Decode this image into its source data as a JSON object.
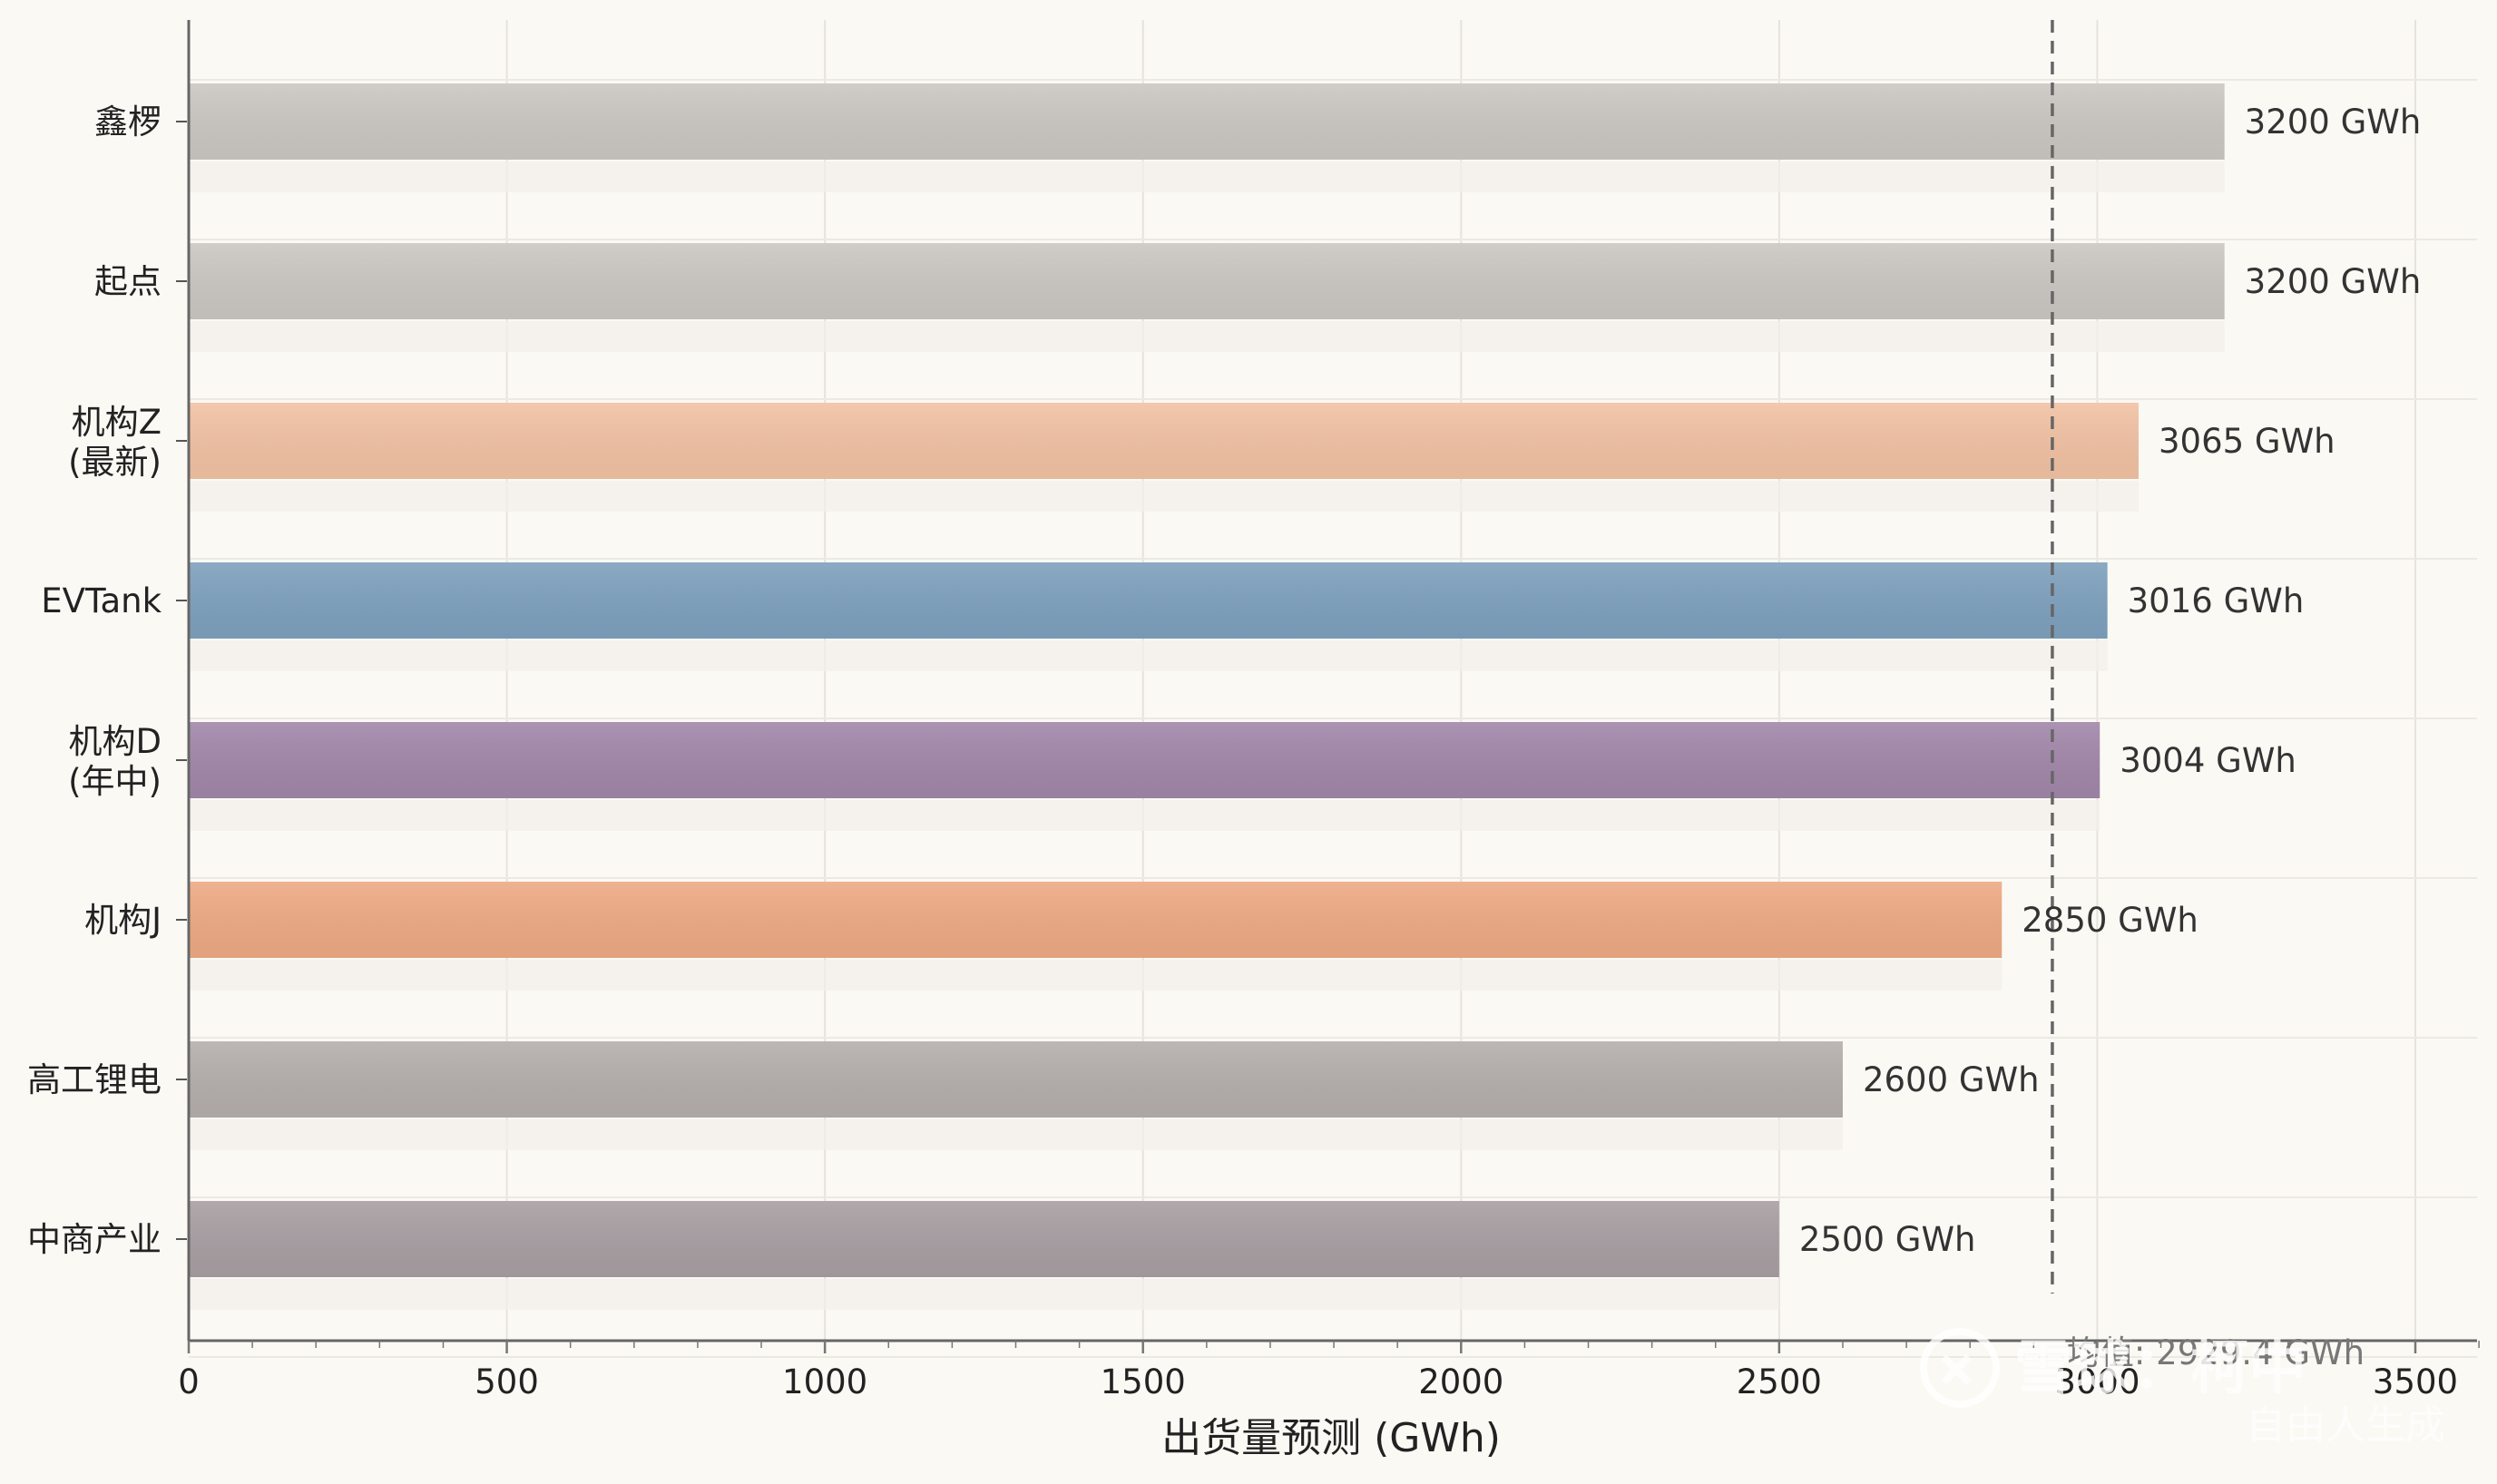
{
  "chart_data": {
    "type": "bar",
    "orientation": "horizontal",
    "categories": [
      "鑫椤",
      "起点",
      "机构Z\n(最新)",
      "EVTank",
      "机构D\n(年中)",
      "机构J",
      "高工锂电",
      "中商产业"
    ],
    "values": [
      3200,
      3200,
      3065,
      3016,
      3004,
      2850,
      2600,
      2500
    ],
    "value_labels": [
      "3200 GWh",
      "3200 GWh",
      "3065 GWh",
      "3016 GWh",
      "3004 GWh",
      "2850 GWh",
      "2600 GWh",
      "2500 GWh"
    ],
    "bar_colors": [
      "#cbc7c2",
      "#cbc7c2",
      "#f2c2a4",
      "#7ea1be",
      "#a287aa",
      "#eeaa84",
      "#b5afac",
      "#a89fa3"
    ],
    "xlabel": "出货量预测 (GWh)",
    "ylabel": "",
    "title": "",
    "xlim": [
      0,
      3600
    ],
    "xticks": [
      0,
      500,
      1000,
      1500,
      2000,
      2500,
      3000,
      3500
    ],
    "grid": true,
    "mean_line": {
      "value": 2929.4,
      "label": "均值: 2929.4 GWh",
      "style": "dashed",
      "color": "#666666"
    }
  },
  "watermark": {
    "brand": "雪球",
    "suffix": "：柯中",
    "sub": "自由人生成"
  }
}
